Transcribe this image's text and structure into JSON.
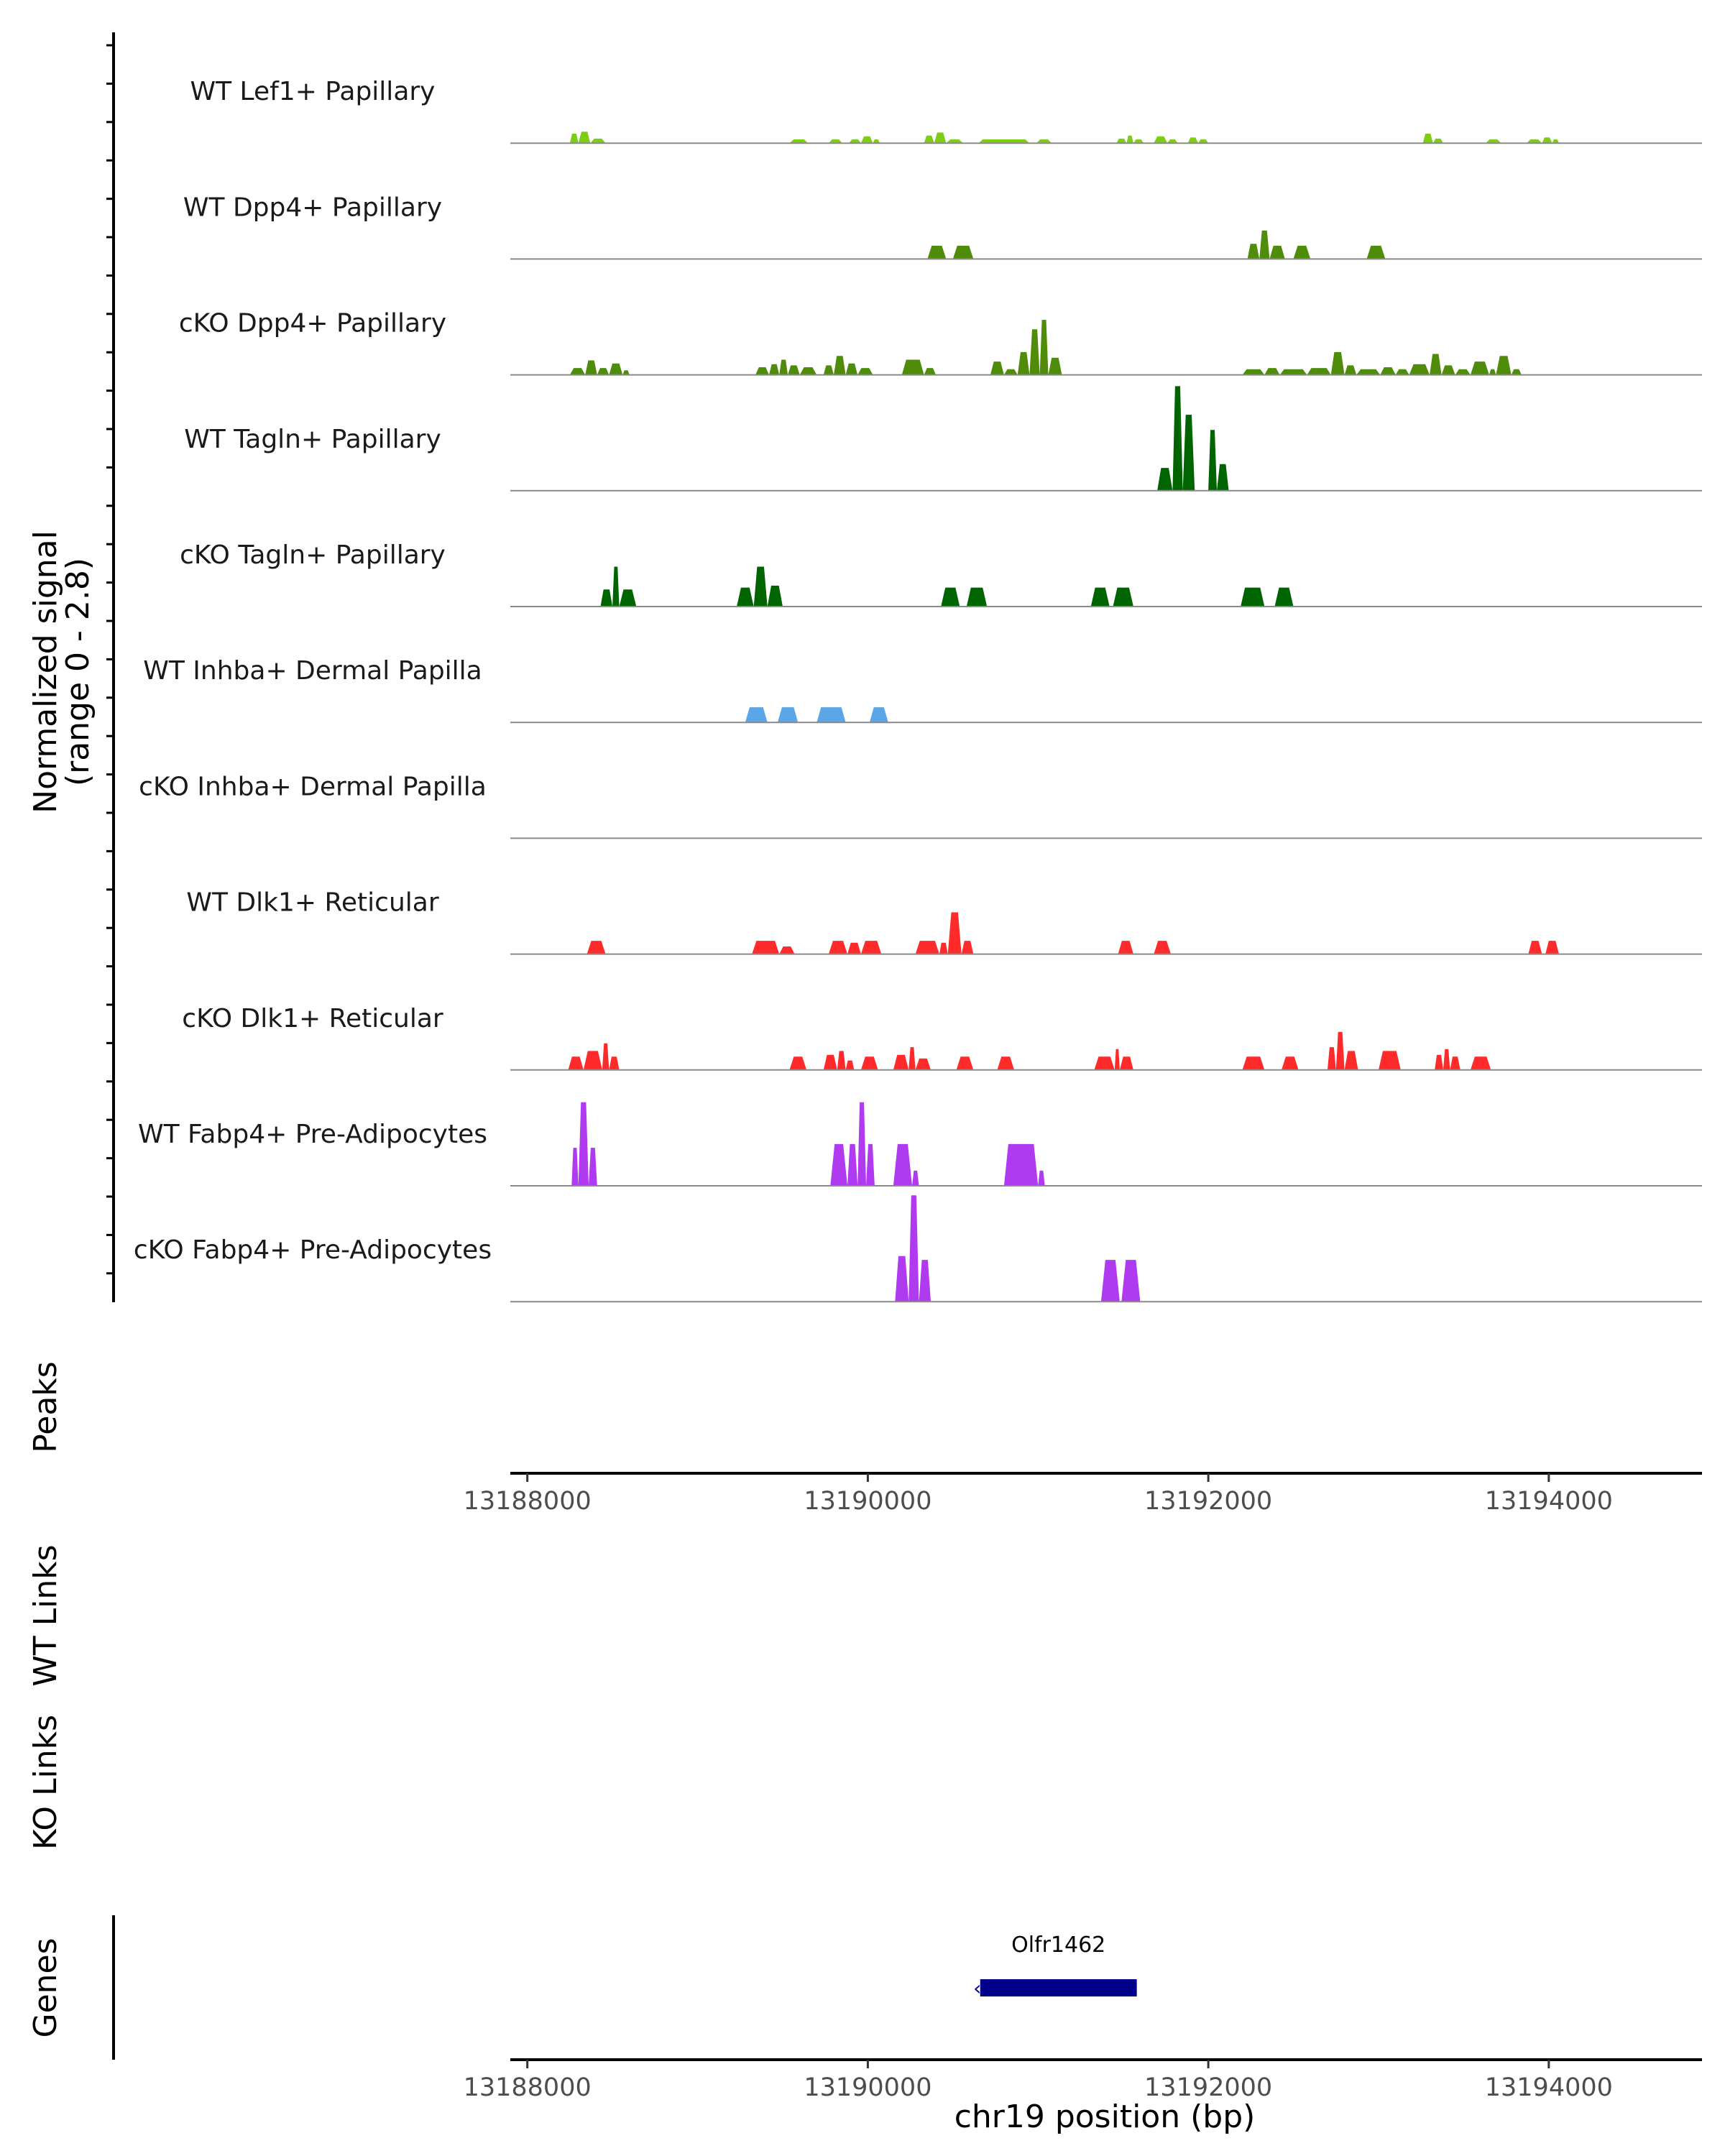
{
  "chart_data": {
    "type": "area",
    "title": "",
    "chromosome": "chr19",
    "xlabel": "chr19 position (bp)",
    "xlim": [
      13187900,
      13194900
    ],
    "x_ticks": [
      13188000,
      13190000,
      13192000,
      13194000
    ],
    "x_tick_labels": [
      "13188000",
      "13190000",
      "13192000",
      "13194000"
    ],
    "coverage_ylabel_line1": "Normalized signal",
    "coverage_ylabel_line2": "(range 0 - 2.8)",
    "ylim": [
      0,
      2.8
    ],
    "peaks_label": "Peaks",
    "wt_links_label": "WT Links",
    "ko_links_label": "KO Links",
    "genes_label": "Genes",
    "tracks": [
      {
        "name": "WT Lef1+ Papillary",
        "color": "#7ccd14",
        "intervals": [
          [
            13188250,
            13188300,
            0.25
          ],
          [
            13188300,
            13188370,
            0.3
          ],
          [
            13188370,
            13188460,
            0.12
          ],
          [
            13189540,
            13189650,
            0.1
          ],
          [
            13189770,
            13189850,
            0.1
          ],
          [
            13189890,
            13189960,
            0.1
          ],
          [
            13189960,
            13190030,
            0.18
          ],
          [
            13190030,
            13190070,
            0.1
          ],
          [
            13190330,
            13190390,
            0.2
          ],
          [
            13190390,
            13190460,
            0.28
          ],
          [
            13190460,
            13190560,
            0.1
          ],
          [
            13190650,
            13190950,
            0.1
          ],
          [
            13190990,
            13191080,
            0.1
          ],
          [
            13191460,
            13191520,
            0.12
          ],
          [
            13191520,
            13191560,
            0.2
          ],
          [
            13191560,
            13191620,
            0.1
          ],
          [
            13191680,
            13191760,
            0.18
          ],
          [
            13191760,
            13191820,
            0.1
          ],
          [
            13191880,
            13191940,
            0.15
          ],
          [
            13191940,
            13192000,
            0.1
          ],
          [
            13193260,
            13193320,
            0.25
          ],
          [
            13193320,
            13193380,
            0.12
          ],
          [
            13193630,
            13193720,
            0.1
          ],
          [
            13193870,
            13193960,
            0.1
          ],
          [
            13193960,
            13194020,
            0.15
          ],
          [
            13194020,
            13194060,
            0.1
          ]
        ]
      },
      {
        "name": "WT Dpp4+ Papillary",
        "color": "#4e8c0a",
        "intervals": [
          [
            13190350,
            13190460,
            0.35
          ],
          [
            13190500,
            13190620,
            0.35
          ],
          [
            13192230,
            13192300,
            0.4
          ],
          [
            13192300,
            13192360,
            0.75
          ],
          [
            13192360,
            13192450,
            0.35
          ],
          [
            13192500,
            13192600,
            0.35
          ],
          [
            13192930,
            13193040,
            0.35
          ]
        ]
      },
      {
        "name": "cKO Dpp4+ Papillary",
        "color": "#4e8c0a",
        "intervals": [
          [
            13188250,
            13188340,
            0.18
          ],
          [
            13188340,
            13188410,
            0.38
          ],
          [
            13188410,
            13188480,
            0.18
          ],
          [
            13188480,
            13188560,
            0.3
          ],
          [
            13188560,
            13188600,
            0.12
          ],
          [
            13189340,
            13189420,
            0.2
          ],
          [
            13189420,
            13189480,
            0.28
          ],
          [
            13189480,
            13189530,
            0.4
          ],
          [
            13189530,
            13189600,
            0.25
          ],
          [
            13189600,
            13189700,
            0.2
          ],
          [
            13189740,
            13189800,
            0.25
          ],
          [
            13189800,
            13189870,
            0.5
          ],
          [
            13189870,
            13189940,
            0.3
          ],
          [
            13189940,
            13190030,
            0.18
          ],
          [
            13190200,
            13190330,
            0.4
          ],
          [
            13190330,
            13190400,
            0.18
          ],
          [
            13190720,
            13190800,
            0.35
          ],
          [
            13190800,
            13190880,
            0.15
          ],
          [
            13190880,
            13190950,
            0.6
          ],
          [
            13190950,
            13191010,
            1.2
          ],
          [
            13191010,
            13191060,
            1.45
          ],
          [
            13191060,
            13191140,
            0.45
          ],
          [
            13192200,
            13192330,
            0.15
          ],
          [
            13192330,
            13192420,
            0.18
          ],
          [
            13192420,
            13192580,
            0.15
          ],
          [
            13192580,
            13192720,
            0.18
          ],
          [
            13192720,
            13192800,
            0.6
          ],
          [
            13192800,
            13192870,
            0.25
          ],
          [
            13192870,
            13193010,
            0.15
          ],
          [
            13193010,
            13193100,
            0.2
          ],
          [
            13193100,
            13193180,
            0.15
          ],
          [
            13193180,
            13193300,
            0.28
          ],
          [
            13193300,
            13193370,
            0.55
          ],
          [
            13193370,
            13193450,
            0.25
          ],
          [
            13193450,
            13193540,
            0.15
          ],
          [
            13193540,
            13193650,
            0.35
          ],
          [
            13193650,
            13193690,
            0.15
          ],
          [
            13193690,
            13193780,
            0.5
          ],
          [
            13193780,
            13193840,
            0.15
          ]
        ]
      },
      {
        "name": "WT Tagln+ Papillary",
        "color": "#006400",
        "intervals": [
          [
            13191700,
            13191790,
            0.6
          ],
          [
            13191790,
            13191850,
            2.75
          ],
          [
            13191850,
            13191920,
            2.0
          ],
          [
            13192000,
            13192050,
            1.6
          ],
          [
            13192050,
            13192120,
            0.7
          ]
        ]
      },
      {
        "name": "cKO Tagln+ Papillary",
        "color": "#006400",
        "intervals": [
          [
            13188430,
            13188500,
            0.45
          ],
          [
            13188500,
            13188540,
            1.05
          ],
          [
            13188540,
            13188640,
            0.45
          ],
          [
            13189230,
            13189330,
            0.5
          ],
          [
            13189330,
            13189410,
            1.05
          ],
          [
            13189410,
            13189500,
            0.55
          ],
          [
            13190430,
            13190540,
            0.5
          ],
          [
            13190580,
            13190700,
            0.5
          ],
          [
            13191310,
            13191420,
            0.5
          ],
          [
            13191440,
            13191560,
            0.5
          ],
          [
            13192190,
            13192330,
            0.5
          ],
          [
            13192390,
            13192500,
            0.5
          ]
        ]
      },
      {
        "name": "WT Inhba+ Dermal Papilla",
        "color": "#5aa6e6",
        "intervals": [
          [
            13189280,
            13189410,
            0.4
          ],
          [
            13189470,
            13189590,
            0.4
          ],
          [
            13189700,
            13189870,
            0.4
          ],
          [
            13190010,
            13190120,
            0.4
          ]
        ]
      },
      {
        "name": "cKO Inhba+ Dermal Papilla",
        "color": "#5aa6e6",
        "intervals": []
      },
      {
        "name": "WT Dlk1+ Reticular",
        "color": "#ff2a2a",
        "intervals": [
          [
            13188350,
            13188460,
            0.35
          ],
          [
            13189320,
            13189480,
            0.35
          ],
          [
            13189480,
            13189570,
            0.2
          ],
          [
            13189770,
            13189880,
            0.35
          ],
          [
            13189880,
            13189960,
            0.3
          ],
          [
            13189960,
            13190080,
            0.35
          ],
          [
            13190280,
            13190420,
            0.35
          ],
          [
            13190420,
            13190470,
            0.3
          ],
          [
            13190470,
            13190550,
            1.1
          ],
          [
            13190550,
            13190620,
            0.35
          ],
          [
            13191470,
            13191560,
            0.35
          ],
          [
            13191680,
            13191780,
            0.35
          ],
          [
            13193880,
            13193960,
            0.35
          ],
          [
            13193980,
            13194060,
            0.35
          ]
        ]
      },
      {
        "name": "cKO Dlk1+ Reticular",
        "color": "#ff2a2a",
        "intervals": [
          [
            13188240,
            13188330,
            0.35
          ],
          [
            13188330,
            13188440,
            0.5
          ],
          [
            13188440,
            13188480,
            0.7
          ],
          [
            13188480,
            13188540,
            0.35
          ],
          [
            13189540,
            13189640,
            0.35
          ],
          [
            13189740,
            13189820,
            0.4
          ],
          [
            13189820,
            13189870,
            0.5
          ],
          [
            13189870,
            13189920,
            0.25
          ],
          [
            13189960,
            13190060,
            0.35
          ],
          [
            13190150,
            13190240,
            0.4
          ],
          [
            13190240,
            13190280,
            0.6
          ],
          [
            13190280,
            13190370,
            0.3
          ],
          [
            13190520,
            13190620,
            0.35
          ],
          [
            13190760,
            13190860,
            0.35
          ],
          [
            13191330,
            13191450,
            0.35
          ],
          [
            13191450,
            13191480,
            0.55
          ],
          [
            13191480,
            13191560,
            0.35
          ],
          [
            13192200,
            13192330,
            0.35
          ],
          [
            13192430,
            13192530,
            0.35
          ],
          [
            13192700,
            13192750,
            0.6
          ],
          [
            13192750,
            13192800,
            1.0
          ],
          [
            13192800,
            13192880,
            0.5
          ],
          [
            13193000,
            13193130,
            0.5
          ],
          [
            13193330,
            13193380,
            0.4
          ],
          [
            13193380,
            13193420,
            0.55
          ],
          [
            13193420,
            13193480,
            0.35
          ],
          [
            13193540,
            13193660,
            0.35
          ]
        ]
      },
      {
        "name": "WT Fabp4+ Pre-Adipocytes",
        "color": "#b03af0",
        "intervals": [
          [
            13188260,
            13188300,
            1.0
          ],
          [
            13188300,
            13188360,
            2.2
          ],
          [
            13188360,
            13188410,
            1.0
          ],
          [
            13189780,
            13189880,
            1.1
          ],
          [
            13189880,
            13189940,
            1.1
          ],
          [
            13189940,
            13189990,
            2.2
          ],
          [
            13189990,
            13190040,
            1.1
          ],
          [
            13190150,
            13190260,
            1.1
          ],
          [
            13190260,
            13190300,
            0.4
          ],
          [
            13190800,
            13191000,
            1.1
          ],
          [
            13191000,
            13191040,
            0.4
          ]
        ]
      },
      {
        "name": "cKO Fabp4+ Pre-Adipocytes",
        "color": "#b03af0",
        "intervals": [
          [
            13190160,
            13190240,
            1.2
          ],
          [
            13190240,
            13190300,
            2.8
          ],
          [
            13190300,
            13190370,
            1.1
          ],
          [
            13191370,
            13191480,
            1.1
          ],
          [
            13191490,
            13191600,
            1.1
          ]
        ]
      }
    ],
    "gene": {
      "name": "Olfr1462",
      "start": 13190660,
      "end": 13191580,
      "strand": "-",
      "color": "#00008b"
    }
  }
}
